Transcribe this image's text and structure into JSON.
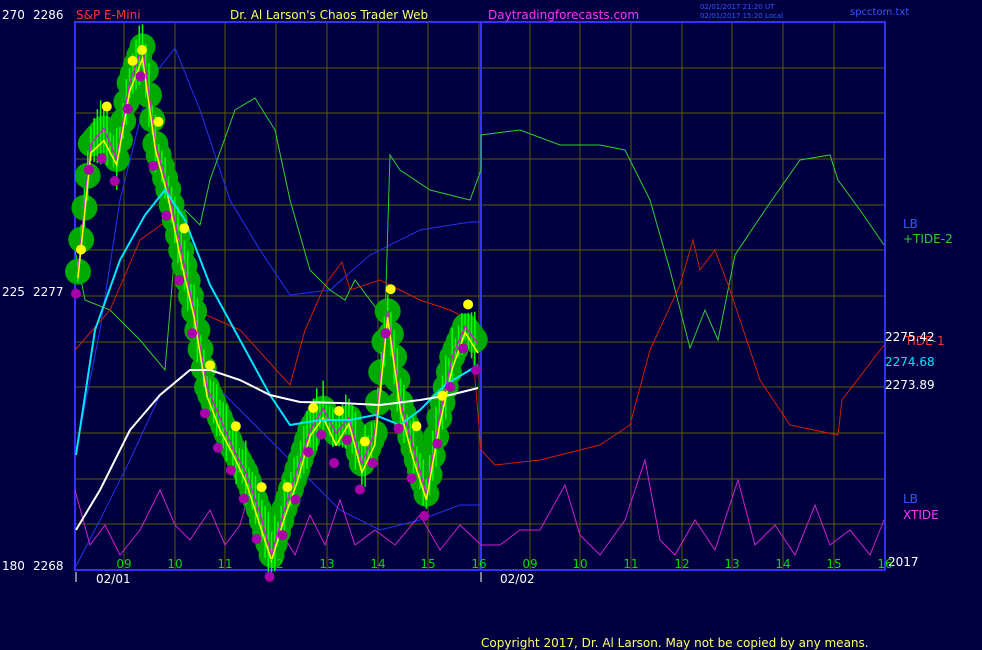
{
  "header": {
    "symbol": "S&P E-Mini",
    "author_title": "Dr. Al Larson's Chaos Trader Web",
    "website": "Daytradingforecasts.com",
    "timestamp_ut": "02/01/2017 21:20 UT",
    "timestamp_local": "02/01/2017 15:20 Local",
    "file": "spcctom.txt"
  },
  "footer": {
    "copyright": "Copyright 2017, Dr. Al Larson. May not be copied by any means."
  },
  "left_axis": {
    "top": {
      "a": "270",
      "b": "2286"
    },
    "mid": {
      "a": "225",
      "b": "2277"
    },
    "bottom": {
      "a": "180",
      "b": "2268"
    }
  },
  "right_labels": {
    "lb_upper": "LB",
    "tide2": "+TIDE-2",
    "tide1": "TIDE-1",
    "lb_lower": "LB",
    "xtide": "XTIDE",
    "year": "2017"
  },
  "price_readouts": [
    "2275.42",
    "2274.68",
    "2273.89"
  ],
  "x_axis": {
    "hour_labels": [
      "09",
      "10",
      "11",
      "12",
      "13",
      "14",
      "15",
      "16",
      "09",
      "10",
      "11",
      "12",
      "13",
      "14",
      "15",
      "16"
    ],
    "date_labels": [
      "02/01",
      "02/02"
    ]
  },
  "colors": {
    "background": "#000040",
    "grid": "#5a5a00",
    "frame": "#3333ff",
    "price_band": "#00aa00",
    "price_bars": "#00ff00",
    "highs_dots": "#ffff00",
    "lows_dots": "#aa00aa",
    "fast_ma": "#ffff00",
    "slow_ma": "#00e5ff",
    "long_ma": "#ffffff",
    "tide2": "#33cc33",
    "tide1": "#cc2200",
    "lb": "#2233ee",
    "xtide": "#cc22cc",
    "text_red": "#ff3333",
    "text_yellow": "#ffff66",
    "text_magenta": "#ff33ff",
    "text_blue": "#3355ff",
    "text_white": "#ffffff"
  },
  "chart_data": {
    "type": "line",
    "title": "S&P E-Mini",
    "ylim": [
      2268,
      2286
    ],
    "x_labels": [
      "09",
      "10",
      "11",
      "12",
      "13",
      "14",
      "15",
      "16",
      "09",
      "10",
      "11",
      "12",
      "13",
      "14",
      "15",
      "16"
    ],
    "legend": "right",
    "series": [
      {
        "name": "S&P E-Mini",
        "values": [
          2277.8,
          2282.0,
          2282.5,
          2281.5,
          2284.0,
          2285.2,
          2282.0,
          2280.5,
          2278.5,
          2276.5,
          2274.0,
          2273.0,
          2272.0,
          2271.2,
          2270.0,
          2268.5,
          2270.0,
          2271.3,
          2272.6,
          2273.3,
          2272.5,
          2273.0,
          2271.5,
          2272.5,
          2276.5,
          2273.5,
          2272.0,
          2270.5,
          2273.0,
          2275.0,
          2276.0,
          2275.42
        ]
      },
      {
        "name": "TIDE-1",
        "values": []
      },
      {
        "name": "+TIDE-2",
        "values": []
      },
      {
        "name": "XTIDE",
        "values": []
      },
      {
        "name": "LB",
        "values": []
      }
    ]
  }
}
